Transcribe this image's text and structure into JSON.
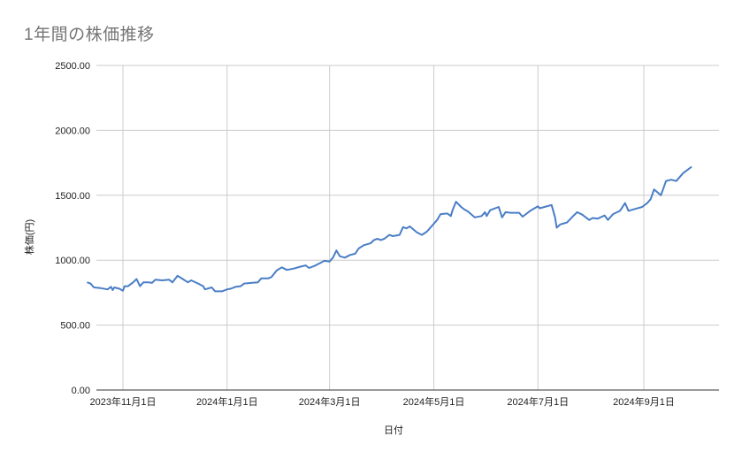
{
  "chart_data": {
    "type": "line",
    "title": "1年間の株価推移",
    "xlabel": "日付",
    "ylabel": "株価(円)",
    "ylim": [
      0,
      2500
    ],
    "yticks": [
      "0.00",
      "500.00",
      "1000.00",
      "1500.00",
      "2000.00",
      "2500.00"
    ],
    "xticks": [
      "2023年11月1日",
      "2024年1月1日",
      "2024年3月1日",
      "2024年5月1日",
      "2024年7月1日",
      "2024年9月1日"
    ],
    "grid": true,
    "legend": "none",
    "line_color": "#4a7ec6",
    "series": [
      {
        "name": "株価(円)",
        "points": [
          [
            "2023-10-11",
            830
          ],
          [
            "2023-10-13",
            820
          ],
          [
            "2023-10-15",
            790
          ],
          [
            "2023-10-19",
            785
          ],
          [
            "2023-10-23",
            775
          ],
          [
            "2023-10-25",
            795
          ],
          [
            "2023-10-26",
            770
          ],
          [
            "2023-10-27",
            790
          ],
          [
            "2023-10-30",
            780
          ],
          [
            "2023-11-01",
            765
          ],
          [
            "2023-11-02",
            800
          ],
          [
            "2023-11-04",
            800
          ],
          [
            "2023-11-07",
            830
          ],
          [
            "2023-11-09",
            855
          ],
          [
            "2023-11-11",
            800
          ],
          [
            "2023-11-13",
            830
          ],
          [
            "2023-11-16",
            830
          ],
          [
            "2023-11-18",
            825
          ],
          [
            "2023-11-20",
            850
          ],
          [
            "2023-11-24",
            845
          ],
          [
            "2023-11-28",
            850
          ],
          [
            "2023-11-30",
            830
          ],
          [
            "2023-12-03",
            880
          ],
          [
            "2023-12-06",
            855
          ],
          [
            "2023-12-09",
            830
          ],
          [
            "2023-12-11",
            845
          ],
          [
            "2023-12-15",
            820
          ],
          [
            "2023-12-18",
            800
          ],
          [
            "2023-12-19",
            775
          ],
          [
            "2023-12-23",
            790
          ],
          [
            "2023-12-25",
            760
          ],
          [
            "2023-12-29",
            760
          ],
          [
            "2024-01-01",
            775
          ],
          [
            "2024-01-03",
            780
          ],
          [
            "2024-01-06",
            795
          ],
          [
            "2024-01-09",
            800
          ],
          [
            "2024-01-11",
            820
          ],
          [
            "2024-01-15",
            825
          ],
          [
            "2024-01-19",
            830
          ],
          [
            "2024-01-21",
            860
          ],
          [
            "2024-01-25",
            860
          ],
          [
            "2024-01-27",
            870
          ],
          [
            "2024-01-30",
            920
          ],
          [
            "2024-02-02",
            945
          ],
          [
            "2024-02-05",
            925
          ],
          [
            "2024-02-09",
            935
          ],
          [
            "2024-02-13",
            950
          ],
          [
            "2024-02-16",
            960
          ],
          [
            "2024-02-18",
            940
          ],
          [
            "2024-02-21",
            955
          ],
          [
            "2024-02-24",
            975
          ],
          [
            "2024-02-27",
            995
          ],
          [
            "2024-03-01",
            990
          ],
          [
            "2024-03-03",
            1020
          ],
          [
            "2024-03-05",
            1075
          ],
          [
            "2024-03-07",
            1030
          ],
          [
            "2024-03-10",
            1020
          ],
          [
            "2024-03-13",
            1040
          ],
          [
            "2024-03-16",
            1050
          ],
          [
            "2024-03-18",
            1090
          ],
          [
            "2024-03-21",
            1115
          ],
          [
            "2024-03-25",
            1130
          ],
          [
            "2024-03-27",
            1155
          ],
          [
            "2024-03-29",
            1165
          ],
          [
            "2024-03-31",
            1155
          ],
          [
            "2024-04-02",
            1165
          ],
          [
            "2024-04-05",
            1195
          ],
          [
            "2024-04-07",
            1185
          ],
          [
            "2024-04-11",
            1195
          ],
          [
            "2024-04-13",
            1255
          ],
          [
            "2024-04-15",
            1245
          ],
          [
            "2024-04-17",
            1260
          ],
          [
            "2024-04-21",
            1215
          ],
          [
            "2024-04-24",
            1195
          ],
          [
            "2024-04-27",
            1220
          ],
          [
            "2024-04-30",
            1265
          ],
          [
            "2024-05-03",
            1310
          ],
          [
            "2024-05-05",
            1355
          ],
          [
            "2024-05-09",
            1360
          ],
          [
            "2024-05-11",
            1340
          ],
          [
            "2024-05-12",
            1385
          ],
          [
            "2024-05-14",
            1450
          ],
          [
            "2024-05-17",
            1410
          ],
          [
            "2024-05-19",
            1390
          ],
          [
            "2024-05-21",
            1375
          ],
          [
            "2024-05-25",
            1330
          ],
          [
            "2024-05-29",
            1340
          ],
          [
            "2024-05-31",
            1370
          ],
          [
            "2024-06-01",
            1340
          ],
          [
            "2024-06-03",
            1385
          ],
          [
            "2024-06-08",
            1410
          ],
          [
            "2024-06-10",
            1330
          ],
          [
            "2024-06-12",
            1370
          ],
          [
            "2024-06-15",
            1365
          ],
          [
            "2024-06-20",
            1365
          ],
          [
            "2024-06-22",
            1335
          ],
          [
            "2024-06-27",
            1385
          ],
          [
            "2024-07-01",
            1415
          ],
          [
            "2024-07-02",
            1400
          ],
          [
            "2024-07-09",
            1425
          ],
          [
            "2024-07-11",
            1330
          ],
          [
            "2024-07-12",
            1250
          ],
          [
            "2024-07-14",
            1275
          ],
          [
            "2024-07-18",
            1290
          ],
          [
            "2024-07-22",
            1345
          ],
          [
            "2024-07-24",
            1370
          ],
          [
            "2024-07-27",
            1350
          ],
          [
            "2024-07-31",
            1310
          ],
          [
            "2024-08-02",
            1325
          ],
          [
            "2024-08-05",
            1320
          ],
          [
            "2024-08-09",
            1345
          ],
          [
            "2024-08-11",
            1310
          ],
          [
            "2024-08-14",
            1355
          ],
          [
            "2024-08-18",
            1380
          ],
          [
            "2024-08-21",
            1440
          ],
          [
            "2024-08-23",
            1380
          ],
          [
            "2024-08-27",
            1395
          ],
          [
            "2024-08-31",
            1410
          ],
          [
            "2024-09-03",
            1440
          ],
          [
            "2024-09-05",
            1470
          ],
          [
            "2024-09-07",
            1545
          ],
          [
            "2024-09-11",
            1500
          ],
          [
            "2024-09-14",
            1610
          ],
          [
            "2024-09-17",
            1620
          ],
          [
            "2024-09-20",
            1610
          ],
          [
            "2024-09-24",
            1670
          ],
          [
            "2024-09-29",
            1720
          ]
        ]
      }
    ]
  }
}
